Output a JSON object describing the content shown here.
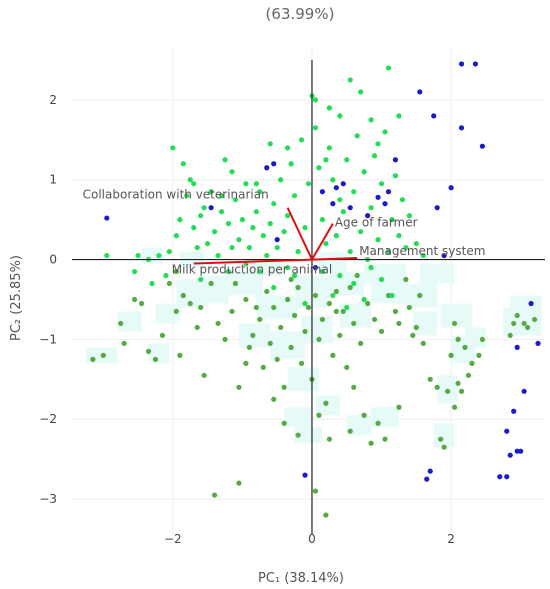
{
  "chart_data": {
    "type": "scatter",
    "title": "(63.99%)",
    "xlabel": "PC₁ (38.14%)",
    "ylabel": "PC₂ (25.85%)",
    "xlim": [
      -3.45,
      3.35
    ],
    "ylim": [
      -3.45,
      2.65
    ],
    "x_ticks": [
      -2,
      0,
      2
    ],
    "y_ticks": [
      2,
      1,
      0,
      -1,
      -2,
      -3
    ],
    "grid": true,
    "zero_lines": true,
    "colors": {
      "blue": "#1a1acc",
      "bright_green": "#22dd55",
      "olive_green": "#55aa44",
      "loading": "#dd1111",
      "grid": "#eeeeee",
      "axis": "#222222",
      "density": "#e6fbf8"
    },
    "loadings": [
      {
        "name": "Collaboration with veterinarian",
        "x": -0.35,
        "y": 0.65
      },
      {
        "name": "Age of farmer",
        "x": 0.3,
        "y": 0.45
      },
      {
        "name": "Management system",
        "x": 0.65,
        "y": 0.02
      },
      {
        "name": "Milk production per animal",
        "x": -1.7,
        "y": -0.05
      }
    ],
    "series": [
      {
        "color_key": "blue",
        "points": [
          [
            -2.95,
            0.52
          ],
          [
            -1.45,
            0.65
          ],
          [
            -0.65,
            1.15
          ],
          [
            -0.55,
            1.2
          ],
          [
            0.15,
            0.85
          ],
          [
            0.3,
            0.7
          ],
          [
            0.35,
            0.9
          ],
          [
            0.45,
            0.95
          ],
          [
            0.55,
            0.65
          ],
          [
            0.8,
            0.55
          ],
          [
            0.95,
            0.78
          ],
          [
            1.05,
            0.7
          ],
          [
            1.1,
            0.85
          ],
          [
            1.2,
            1.25
          ],
          [
            1.55,
            2.1
          ],
          [
            1.75,
            1.8
          ],
          [
            1.9,
            0.05
          ],
          [
            2.0,
            0.9
          ],
          [
            2.15,
            1.65
          ],
          [
            2.15,
            2.45
          ],
          [
            2.35,
            2.45
          ],
          [
            2.45,
            1.42
          ],
          [
            1.8,
            0.65
          ],
          [
            -0.1,
            -2.7
          ],
          [
            0.05,
            -0.1
          ],
          [
            1.65,
            -2.75
          ],
          [
            1.7,
            -2.65
          ],
          [
            2.7,
            -2.72
          ],
          [
            2.8,
            -2.72
          ],
          [
            2.85,
            -2.45
          ],
          [
            2.95,
            -2.4
          ],
          [
            3.0,
            -2.4
          ],
          [
            2.8,
            -2.15
          ],
          [
            2.9,
            -1.9
          ],
          [
            3.05,
            -1.65
          ],
          [
            2.95,
            -1.1
          ],
          [
            3.15,
            -0.55
          ],
          [
            3.25,
            -1.05
          ],
          [
            -0.5,
            0.25
          ]
        ]
      },
      {
        "color_key": "bright_green",
        "points": [
          [
            -2.95,
            0.05
          ],
          [
            -2.5,
            0.05
          ],
          [
            -2.35,
            0.0
          ],
          [
            -2.2,
            0.05
          ],
          [
            -2.05,
            0.1
          ],
          [
            -1.95,
            0.3
          ],
          [
            -1.9,
            0.5
          ],
          [
            -1.8,
            0.8
          ],
          [
            -1.75,
            1.0
          ],
          [
            -1.7,
            0.4
          ],
          [
            -1.65,
            0.15
          ],
          [
            -1.6,
            0.55
          ],
          [
            -1.55,
            0.65
          ],
          [
            -1.5,
            0.2
          ],
          [
            -1.45,
            0.85
          ],
          [
            -1.4,
            0.35
          ],
          [
            -1.35,
            0.05
          ],
          [
            -1.3,
            0.6
          ],
          [
            -1.25,
            1.25
          ],
          [
            -1.2,
            0.45
          ],
          [
            -1.15,
            0.15
          ],
          [
            -1.1,
            0.75
          ],
          [
            -1.05,
            0.25
          ],
          [
            -1.0,
            0.5
          ],
          [
            -0.95,
            0.95
          ],
          [
            -0.9,
            0.15
          ],
          [
            -0.85,
            0.4
          ],
          [
            -0.8,
            0.6
          ],
          [
            -0.75,
            0.85
          ],
          [
            -0.7,
            0.3
          ],
          [
            -0.65,
            0.05
          ],
          [
            -0.6,
            0.45
          ],
          [
            -0.55,
            0.7
          ],
          [
            -0.5,
            0.15
          ],
          [
            -0.45,
            1.0
          ],
          [
            -0.4,
            0.35
          ],
          [
            -0.35,
            0.55
          ],
          [
            -0.3,
            1.2
          ],
          [
            -0.25,
            0.8
          ],
          [
            -0.2,
            0.1
          ],
          [
            -0.15,
            1.5
          ],
          [
            -0.1,
            0.4
          ],
          [
            -0.05,
            0.95
          ],
          [
            0.0,
            2.05
          ],
          [
            0.05,
            1.65
          ],
          [
            0.1,
            1.15
          ],
          [
            0.15,
            0.5
          ],
          [
            0.2,
            0.2
          ],
          [
            0.25,
            1.4
          ],
          [
            0.3,
            1.0
          ],
          [
            0.35,
            0.3
          ],
          [
            0.4,
            1.8
          ],
          [
            0.45,
            0.6
          ],
          [
            0.5,
            1.25
          ],
          [
            0.55,
            0.1
          ],
          [
            0.6,
            0.85
          ],
          [
            0.65,
            1.55
          ],
          [
            0.7,
            0.35
          ],
          [
            0.75,
            1.1
          ],
          [
            0.8,
            0.0
          ],
          [
            0.85,
            0.65
          ],
          [
            0.9,
            1.3
          ],
          [
            0.95,
            0.25
          ],
          [
            1.0,
            0.95
          ],
          [
            1.05,
            1.6
          ],
          [
            1.1,
            0.1
          ],
          [
            1.15,
            0.5
          ],
          [
            1.2,
            1.05
          ],
          [
            1.25,
            0.3
          ],
          [
            1.3,
            0.75
          ],
          [
            1.35,
            0.15
          ],
          [
            1.4,
            0.55
          ],
          [
            1.5,
            0.2
          ],
          [
            1.6,
            0.05
          ],
          [
            -2.0,
            1.4
          ],
          [
            -1.85,
            1.2
          ],
          [
            -1.7,
            0.95
          ],
          [
            -1.15,
            1.1
          ],
          [
            -0.35,
            1.4
          ],
          [
            0.05,
            2.0
          ],
          [
            0.25,
            1.9
          ],
          [
            0.55,
            2.25
          ],
          [
            0.85,
            1.75
          ],
          [
            1.1,
            2.4
          ],
          [
            1.25,
            1.8
          ],
          [
            0.7,
            2.1
          ],
          [
            -0.95,
            -0.05
          ],
          [
            -0.75,
            -0.15
          ],
          [
            -0.35,
            -0.1
          ],
          [
            -0.25,
            -0.2
          ],
          [
            0.15,
            -0.15
          ],
          [
            0.4,
            -0.2
          ],
          [
            0.6,
            -0.3
          ],
          [
            0.85,
            -0.1
          ],
          [
            1.0,
            -0.25
          ],
          [
            -1.2,
            -0.15
          ],
          [
            -1.6,
            -0.25
          ],
          [
            -2.1,
            -0.2
          ],
          [
            -2.3,
            -0.3
          ],
          [
            -0.55,
            -0.35
          ],
          [
            0.3,
            -0.45
          ],
          [
            0.5,
            -0.6
          ],
          [
            0.75,
            -0.5
          ],
          [
            1.15,
            -0.45
          ],
          [
            -0.1,
            -0.55
          ],
          [
            -0.8,
            0.95
          ],
          [
            0.2,
            1.25
          ],
          [
            0.95,
            1.45
          ],
          [
            -1.3,
            0.8
          ],
          [
            0.4,
            0.75
          ],
          [
            -0.6,
            1.45
          ],
          [
            -2.55,
            -0.15
          ]
        ]
      },
      {
        "color_key": "olive_green",
        "points": [
          [
            -3.15,
            -1.25
          ],
          [
            -3.0,
            -1.2
          ],
          [
            -2.75,
            -0.8
          ],
          [
            -2.55,
            -0.5
          ],
          [
            -2.35,
            -1.15
          ],
          [
            -2.25,
            -1.25
          ],
          [
            -2.15,
            -0.95
          ],
          [
            -2.05,
            -0.3
          ],
          [
            -1.95,
            -0.65
          ],
          [
            -1.85,
            -0.45
          ],
          [
            -1.75,
            -0.55
          ],
          [
            -1.65,
            -0.85
          ],
          [
            -1.55,
            -1.45
          ],
          [
            -1.45,
            -0.3
          ],
          [
            -1.35,
            -0.8
          ],
          [
            -1.25,
            -1.0
          ],
          [
            -1.15,
            -0.65
          ],
          [
            -1.05,
            -1.6
          ],
          [
            -0.95,
            -0.5
          ],
          [
            -0.9,
            -1.1
          ],
          [
            -0.85,
            -0.95
          ],
          [
            -0.75,
            -0.75
          ],
          [
            -0.7,
            -1.35
          ],
          [
            -0.65,
            -0.4
          ],
          [
            -0.6,
            -1.05
          ],
          [
            -0.55,
            -0.6
          ],
          [
            -0.5,
            -1.25
          ],
          [
            -0.45,
            -0.85
          ],
          [
            -0.4,
            -1.6
          ],
          [
            -0.35,
            -0.5
          ],
          [
            -0.3,
            -1.1
          ],
          [
            -0.25,
            -0.7
          ],
          [
            -0.2,
            -0.35
          ],
          [
            -0.15,
            -1.3
          ],
          [
            -0.1,
            -0.9
          ],
          [
            -0.05,
            -0.6
          ],
          [
            0.0,
            -1.5
          ],
          [
            0.05,
            -0.45
          ],
          [
            0.1,
            -1.0
          ],
          [
            0.15,
            -0.75
          ],
          [
            0.2,
            -1.8
          ],
          [
            0.25,
            -0.55
          ],
          [
            0.3,
            -1.2
          ],
          [
            0.35,
            -0.4
          ],
          [
            0.4,
            -0.95
          ],
          [
            0.45,
            -0.65
          ],
          [
            0.5,
            -1.35
          ],
          [
            0.55,
            -0.35
          ],
          [
            0.6,
            -0.8
          ],
          [
            0.7,
            -1.05
          ],
          [
            0.8,
            -0.55
          ],
          [
            0.9,
            -0.75
          ],
          [
            1.0,
            -0.9
          ],
          [
            1.1,
            -0.45
          ],
          [
            1.25,
            -0.8
          ],
          [
            1.4,
            -0.6
          ],
          [
            1.5,
            -0.85
          ],
          [
            1.6,
            -1.05
          ],
          [
            1.55,
            -0.45
          ],
          [
            1.7,
            -1.5
          ],
          [
            1.8,
            -1.6
          ],
          [
            1.85,
            -2.25
          ],
          [
            1.9,
            -2.35
          ],
          [
            1.95,
            -1.65
          ],
          [
            2.0,
            -1.2
          ],
          [
            2.05,
            -0.8
          ],
          [
            2.1,
            -1.0
          ],
          [
            2.2,
            -1.1
          ],
          [
            2.3,
            -1.3
          ],
          [
            2.4,
            -1.2
          ],
          [
            2.25,
            -1.45
          ],
          [
            2.1,
            -1.55
          ],
          [
            2.05,
            -1.85
          ],
          [
            2.15,
            -1.65
          ],
          [
            -1.4,
            -2.95
          ],
          [
            -1.05,
            -2.8
          ],
          [
            -0.55,
            -1.75
          ],
          [
            -0.4,
            -2.05
          ],
          [
            -0.2,
            -2.2
          ],
          [
            0.1,
            -1.95
          ],
          [
            0.25,
            -2.25
          ],
          [
            0.55,
            -2.15
          ],
          [
            0.75,
            -1.95
          ],
          [
            0.85,
            -2.3
          ],
          [
            0.95,
            -2.05
          ],
          [
            1.05,
            -2.25
          ],
          [
            1.25,
            -1.85
          ],
          [
            0.2,
            -3.2
          ],
          [
            0.05,
            -2.9
          ],
          [
            2.9,
            -0.8
          ],
          [
            3.05,
            -0.8
          ],
          [
            3.1,
            -0.85
          ],
          [
            3.2,
            -0.75
          ],
          [
            2.85,
            -0.95
          ],
          [
            2.95,
            -0.7
          ],
          [
            2.45,
            -1.0
          ],
          [
            1.35,
            -0.25
          ],
          [
            -1.95,
            -0.15
          ],
          [
            -1.1,
            -0.3
          ],
          [
            -0.3,
            -0.25
          ],
          [
            0.65,
            -0.2
          ],
          [
            -2.45,
            -0.55
          ],
          [
            -1.6,
            -0.6
          ],
          [
            -0.8,
            -0.6
          ],
          [
            0.35,
            -0.65
          ],
          [
            1.2,
            -0.65
          ],
          [
            -2.7,
            -1.05
          ],
          [
            -1.9,
            -1.2
          ],
          [
            -0.95,
            -1.3
          ],
          [
            0.6,
            -1.6
          ],
          [
            1.45,
            -0.95
          ]
        ]
      }
    ],
    "density_cells": [
      [
        -3.25,
        -1.3,
        0.45,
        0.2
      ],
      [
        -2.8,
        -0.9,
        0.35,
        0.25
      ],
      [
        -2.35,
        -1.3,
        0.3,
        0.25
      ],
      [
        -2.25,
        -0.8,
        0.35,
        0.25
      ],
      [
        -1.95,
        -0.6,
        0.4,
        0.35
      ],
      [
        -1.6,
        -0.55,
        0.4,
        0.35
      ],
      [
        -1.2,
        -0.45,
        0.5,
        0.3
      ],
      [
        -0.8,
        -0.75,
        0.6,
        0.3
      ],
      [
        -1.05,
        -1.1,
        0.45,
        0.3
      ],
      [
        -0.6,
        -1.25,
        0.5,
        0.35
      ],
      [
        -0.25,
        -0.6,
        0.5,
        0.4
      ],
      [
        -0.15,
        -1.05,
        0.45,
        0.35
      ],
      [
        0.25,
        -0.45,
        0.5,
        0.3
      ],
      [
        0.4,
        -0.85,
        0.45,
        0.3
      ],
      [
        0.75,
        -0.3,
        0.6,
        0.25
      ],
      [
        0.85,
        -0.55,
        0.55,
        0.25
      ],
      [
        1.35,
        -0.6,
        0.45,
        0.3
      ],
      [
        1.45,
        -0.95,
        0.35,
        0.3
      ],
      [
        1.55,
        -0.3,
        0.5,
        0.25
      ],
      [
        1.85,
        -0.85,
        0.45,
        0.3
      ],
      [
        2.0,
        -1.3,
        0.35,
        0.35
      ],
      [
        2.2,
        -1.1,
        0.3,
        0.25
      ],
      [
        -0.35,
        -1.65,
        0.45,
        0.3
      ],
      [
        0.05,
        -1.95,
        0.35,
        0.25
      ],
      [
        -0.4,
        -2.1,
        0.4,
        0.25
      ],
      [
        0.5,
        -2.2,
        0.35,
        0.25
      ],
      [
        0.85,
        -2.1,
        0.4,
        0.25
      ],
      [
        -0.25,
        -2.3,
        0.4,
        0.2
      ],
      [
        1.8,
        -1.8,
        0.3,
        0.35
      ],
      [
        1.75,
        -2.35,
        0.3,
        0.3
      ],
      [
        2.75,
        -0.95,
        0.55,
        0.35
      ],
      [
        2.85,
        -0.7,
        0.45,
        0.25
      ],
      [
        -2.45,
        -0.05,
        0.3,
        0.2
      ],
      [
        -1.9,
        -0.1,
        0.35,
        0.2
      ],
      [
        -0.9,
        -0.2,
        0.5,
        0.2
      ],
      [
        0.1,
        -0.15,
        0.4,
        0.25
      ]
    ]
  }
}
